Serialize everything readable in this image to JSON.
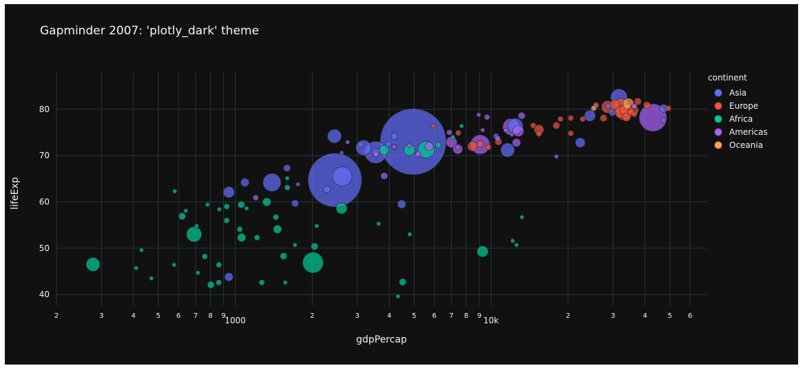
{
  "chart_data": {
    "type": "scatter",
    "title": "Gapminder 2007: 'plotly_dark' theme",
    "xlabel": "gdpPercap",
    "ylabel": "lifeExp",
    "x_scale": "log",
    "xlim": [
      200,
      70000
    ],
    "ylim": [
      37.5,
      88
    ],
    "x_ticks": [
      {
        "value": 200,
        "label": "2"
      },
      {
        "value": 300,
        "label": "3"
      },
      {
        "value": 400,
        "label": "4"
      },
      {
        "value": 500,
        "label": "5"
      },
      {
        "value": 600,
        "label": "6"
      },
      {
        "value": 700,
        "label": "7"
      },
      {
        "value": 800,
        "label": "8"
      },
      {
        "value": 900,
        "label": "9"
      },
      {
        "value": 1000,
        "label": "1000"
      },
      {
        "value": 2000,
        "label": "2"
      },
      {
        "value": 3000,
        "label": "3"
      },
      {
        "value": 4000,
        "label": "4"
      },
      {
        "value": 5000,
        "label": "5"
      },
      {
        "value": 6000,
        "label": "6"
      },
      {
        "value": 7000,
        "label": "7"
      },
      {
        "value": 8000,
        "label": "8"
      },
      {
        "value": 9000,
        "label": "9"
      },
      {
        "value": 10000,
        "label": "10k"
      },
      {
        "value": 20000,
        "label": "2"
      },
      {
        "value": 30000,
        "label": "3"
      },
      {
        "value": 40000,
        "label": "4"
      },
      {
        "value": 50000,
        "label": "5"
      },
      {
        "value": 60000,
        "label": "6"
      }
    ],
    "y_ticks": [
      40,
      50,
      60,
      70,
      80
    ],
    "grid": true,
    "legend_title": "continent",
    "legend_position": "right",
    "series": [
      {
        "name": "Asia",
        "color": "#636efa",
        "points": [
          [
            4959,
            73.0,
            48
          ],
          [
            2452,
            64.7,
            39
          ],
          [
            2620,
            65.5,
            14
          ],
          [
            31656,
            82.6,
            12
          ],
          [
            1391,
            64.2,
            13
          ],
          [
            2442,
            74.2,
            10
          ],
          [
            3540,
            70.7,
            16
          ],
          [
            3173,
            71.7,
            11
          ],
          [
            12452,
            76.4,
            11
          ],
          [
            11606,
            71.2,
            10
          ],
          [
            944,
            62.1,
            8
          ],
          [
            1091,
            64.2,
            6
          ],
          [
            944,
            43.8,
            6
          ],
          [
            1713,
            59.7,
            5
          ],
          [
            22316,
            72.8,
            7
          ],
          [
            24340,
            78.6,
            8
          ],
          [
            3548,
            70.6,
            6
          ],
          [
            4186,
            74.2,
            5
          ],
          [
            2281,
            62.7,
            5
          ],
          [
            1593,
            67.3,
            5
          ],
          [
            47306,
            80.2,
            6
          ],
          [
            3095,
            72.4,
            4
          ],
          [
            29796,
            79.3,
            5
          ],
          [
            4471,
            59.5,
            6
          ],
          [
            3970,
            72.5,
            4
          ],
          [
            28718,
            80.7,
            4
          ],
          [
            25523,
            80.6,
            4
          ],
          [
            47143,
            77.6,
            4
          ],
          [
            10461,
            74.2,
            4
          ],
          [
            4185,
            71.9,
            3
          ],
          [
            12057,
            74.5,
            3
          ],
          [
            1757,
            63.8,
            3
          ],
          [
            2606,
            70.6,
            3
          ]
        ]
      },
      {
        "name": "Europe",
        "color": "#ef553b",
        "points": [
          [
            32170,
            80.7,
            11
          ],
          [
            32185,
            79.4,
            9
          ],
          [
            33203,
            79.4,
            12
          ],
          [
            33692,
            79.8,
            9
          ],
          [
            28569,
            80.5,
            9
          ],
          [
            30470,
            81.0,
            7
          ],
          [
            36126,
            79.8,
            7
          ],
          [
            33860,
            78.3,
            6
          ],
          [
            15390,
            75.6,
            7
          ],
          [
            8458,
            72.0,
            7
          ],
          [
            9065,
            72.5,
            5
          ],
          [
            27538,
            78.1,
            5
          ],
          [
            40676,
            80.9,
            5
          ],
          [
            35278,
            79.4,
            5
          ],
          [
            37506,
            81.7,
            5
          ],
          [
            18009,
            76.5,
            5
          ],
          [
            20510,
            78.1,
            4
          ],
          [
            10681,
            73.0,
            5
          ],
          [
            9787,
            71.8,
            4
          ],
          [
            14619,
            76.5,
            4
          ],
          [
            20510,
            74.8,
            4
          ],
          [
            49357,
            80.2,
            4
          ],
          [
            25768,
            80.9,
            4
          ],
          [
            18678,
            77.9,
            4
          ],
          [
            22833,
            77.9,
            4
          ],
          [
            36319,
            78.9,
            4
          ],
          [
            5937,
            76.4,
            3
          ],
          [
            15389,
            74.7,
            4
          ],
          [
            7446,
            74.9,
            4
          ],
          [
            36181,
            80.5,
            4
          ]
        ]
      },
      {
        "name": "Africa",
        "color": "#00cc96",
        "points": [
          [
            2014,
            46.9,
            15
          ],
          [
            278,
            46.5,
            10
          ],
          [
            5581,
            71.3,
            12
          ],
          [
            690,
            53.0,
            11
          ],
          [
            2605,
            58.6,
            8
          ],
          [
            1328,
            60.0,
            6
          ],
          [
            1463,
            54.1,
            6
          ],
          [
            1059,
            52.3,
            6
          ],
          [
            4797,
            71.2,
            8
          ],
          [
            3820,
            71.2,
            7
          ],
          [
            9270,
            49.3,
            8
          ],
          [
            620,
            56.9,
            5
          ],
          [
            1056,
            59.4,
            5
          ],
          [
            2042,
            50.4,
            5
          ],
          [
            1545,
            48.3,
            5
          ],
          [
            863,
            46.4,
            4
          ],
          [
            926,
            59.0,
            4
          ],
          [
            1598,
            63.1,
            4
          ],
          [
            926,
            56.0,
            4
          ],
          [
            580,
            62.3,
            3
          ],
          [
            1217,
            52.3,
            4
          ],
          [
            6223,
            72.3,
            4
          ],
          [
            1270,
            42.6,
            4
          ],
          [
            803,
            42.1,
            5
          ],
          [
            4513,
            42.7,
            5
          ],
          [
            1042,
            54.1,
            4
          ],
          [
            1441,
            56.7,
            4
          ],
          [
            760,
            48.2,
            4
          ],
          [
            862,
            42.6,
            4
          ],
          [
            430,
            49.6,
            3
          ],
          [
            470,
            43.5,
            3
          ],
          [
            410,
            45.7,
            3
          ],
          [
            706,
            54.8,
            3
          ],
          [
            866,
            58.4,
            3
          ],
          [
            1597,
            65.1,
            3
          ],
          [
            1107,
            58.6,
            3
          ],
          [
            1569,
            42.6,
            3
          ],
          [
            641,
            58.1,
            3
          ],
          [
            3633,
            55.3,
            3
          ],
          [
            2082,
            54.8,
            3
          ],
          [
            715,
            44.7,
            3
          ],
          [
            1712,
            50.7,
            3
          ],
          [
            4811,
            53.0,
            3
          ],
          [
            7093,
            74.0,
            3
          ],
          [
            12570,
            50.7,
            3
          ],
          [
            13206,
            56.7,
            3
          ],
          [
            12154,
            51.6,
            3
          ],
          [
            4325,
            39.6,
            3
          ],
          [
            779,
            59.4,
            3
          ],
          [
            577,
            46.4,
            3
          ],
          [
            7670,
            76.4,
            3
          ]
        ]
      },
      {
        "name": "Americas",
        "color": "#ab63fa",
        "points": [
          [
            42952,
            78.2,
            20
          ],
          [
            9066,
            72.4,
            14
          ],
          [
            11977,
            76.2,
            12
          ],
          [
            12779,
            75.3,
            8
          ],
          [
            7007,
            72.9,
            8
          ],
          [
            7409,
            71.4,
            7
          ],
          [
            5728,
            72.0,
            6
          ],
          [
            12570,
            72.8,
            6
          ],
          [
            13172,
            78.6,
            5
          ],
          [
            3822,
            65.6,
            5
          ],
          [
            9646,
            78.3,
            4
          ],
          [
            4173,
            71.9,
            4
          ],
          [
            10611,
            73.7,
            4
          ],
          [
            3548,
            70.3,
            4
          ],
          [
            6873,
            75.0,
            4
          ],
          [
            5186,
            70.3,
            4
          ],
          [
            36319,
            80.7,
            4
          ],
          [
            1202,
            60.9,
            4
          ],
          [
            7408,
            71.8,
            3
          ],
          [
            9270,
            75.5,
            3
          ],
          [
            4797,
            72.2,
            3
          ],
          [
            18009,
            69.8,
            3
          ],
          [
            2749,
            72.9,
            3
          ],
          [
            11415,
            75.5,
            3
          ],
          [
            8948,
            78.8,
            3
          ]
        ]
      },
      {
        "name": "Oceania",
        "color": "#ffa15a",
        "points": [
          [
            34435,
            81.2,
            8
          ],
          [
            25185,
            80.2,
            4
          ]
        ]
      }
    ]
  }
}
